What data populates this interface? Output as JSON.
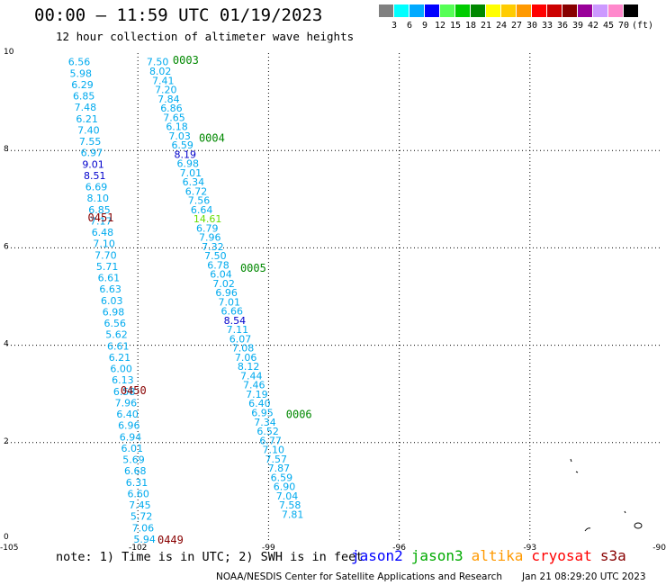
{
  "header": {
    "title": "00:00 – 11:59 UTC 01/19/2023",
    "subtitle": "12 hour collection of altimeter wave heights"
  },
  "colorbar": {
    "unit_label": "(ft)",
    "colors": [
      "#808080",
      "#00ffff",
      "#00aaff",
      "#0000ff",
      "#55ff55",
      "#00cc00",
      "#008800",
      "#ffff00",
      "#ffcc00",
      "#ff9900",
      "#ff0000",
      "#cc0000",
      "#880000",
      "#990099",
      "#cc99ff",
      "#ff88cc",
      "#000000"
    ],
    "labels": [
      "3",
      "6",
      "9",
      "12",
      "15",
      "18",
      "21",
      "24",
      "27",
      "30",
      "33",
      "36",
      "39",
      "42",
      "45",
      "70"
    ]
  },
  "chart_data": {
    "type": "scatter",
    "xlim": [
      -105,
      -90
    ],
    "ylim": [
      0,
      10
    ],
    "x_ticks": [
      "-105",
      "-102",
      "-99",
      "-96",
      "-93",
      "-90"
    ],
    "y_ticks": [
      "0",
      "2",
      "4",
      "6",
      "8",
      "10"
    ],
    "grid": true,
    "tracks": [
      {
        "pass": "0451",
        "values": [
          "6.56",
          "5.98",
          "6.29",
          "6.85",
          "7.48",
          "6.21",
          "7.40",
          "7.55",
          "6.97",
          "9.01",
          "8.51",
          "6.69",
          "8.10",
          "6.85",
          "7.17",
          "6.48",
          "7.10",
          "7.70",
          "5.71",
          "6.61",
          "6.63",
          "6.03",
          "6.98",
          "6.56",
          "5.62",
          "6.61",
          "6.21",
          "6.00",
          "6.13",
          "6.58",
          "7.96",
          "6.40",
          "6.96",
          "6.94",
          "6.01",
          "5.69",
          "6.68",
          "6.31",
          "6.60",
          "7.45",
          "5.72",
          "7.06",
          "5.94"
        ]
      },
      {
        "pass": "0450",
        "values": []
      },
      {
        "pass": "0449",
        "values": []
      },
      {
        "pass": "0003",
        "values": [
          "7.50",
          "8.02",
          "7.41",
          "7.20",
          "7.84",
          "6.86",
          "7.65",
          "6.18",
          "7.03",
          "6.59",
          "8.19",
          "6.98",
          "7.01",
          "6.34",
          "6.72",
          "7.56",
          "6.64",
          "14.61",
          "6.79",
          "7.96",
          "7.32",
          "7.50",
          "6.78",
          "6.04",
          "7.02",
          "6.96",
          "7.01",
          "6.66",
          "8.54",
          "7.11",
          "6.07",
          "7.08",
          "7.06",
          "8.12",
          "7.44",
          "7.46",
          "7.19",
          "6.40",
          "6.95",
          "7.34",
          "6.52",
          "6.77",
          "7.10",
          "7.57",
          "7.87",
          "6.59",
          "6.90",
          "7.04",
          "7.58",
          "7.81"
        ]
      },
      {
        "pass": "0004",
        "values": []
      },
      {
        "pass": "0005",
        "values": []
      },
      {
        "pass": "0006",
        "values": []
      }
    ],
    "pass_labels": [
      {
        "text": "0003",
        "lon": -101.2,
        "lat": 9.85,
        "color": "#008800"
      },
      {
        "text": "0004",
        "lon": -100.6,
        "lat": 8.25,
        "color": "#008800"
      },
      {
        "text": "0005",
        "lon": -99.65,
        "lat": 5.58,
        "color": "#008800"
      },
      {
        "text": "0006",
        "lon": -98.6,
        "lat": 2.58,
        "color": "#008800"
      },
      {
        "text": "0451",
        "lon": -103.15,
        "lat": 6.62,
        "color": "#880000"
      },
      {
        "text": "0450",
        "lon": -102.4,
        "lat": 3.07,
        "color": "#880000"
      },
      {
        "text": "0449",
        "lon": -101.55,
        "lat": 0.0,
        "color": "#880000"
      }
    ]
  },
  "note": "note: 1) Time is in UTC; 2) SWH is in feet",
  "satellites": [
    {
      "name": "jason2",
      "color": "#0000ff"
    },
    {
      "name": "jason3",
      "color": "#00aa00"
    },
    {
      "name": "altika",
      "color": "#ff9900"
    },
    {
      "name": "cryosat",
      "color": "#ff0000"
    },
    {
      "name": "s3a",
      "color": "#880000"
    }
  ],
  "footer": {
    "credit": "NOAA/NESDIS Center for Satellite Applications and Research",
    "generated": "Jan 21 08:29:20 UTC 2023"
  }
}
